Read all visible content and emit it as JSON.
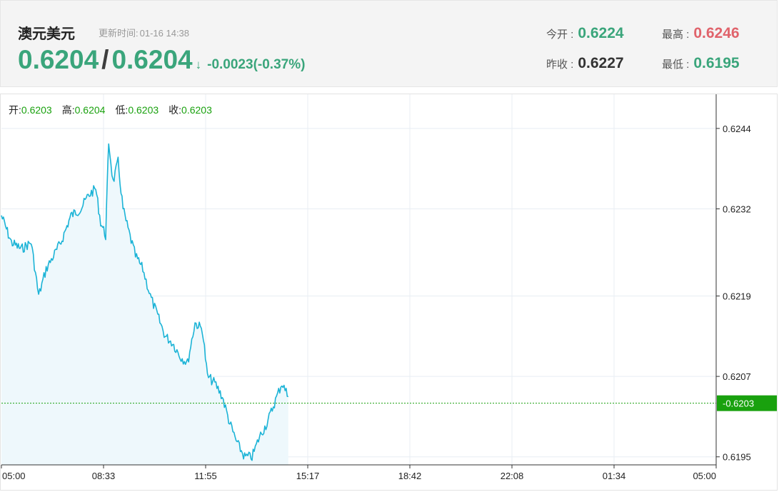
{
  "header": {
    "pair_name": "澳元美元",
    "updated_label": "更新时间:",
    "updated_time": "01-16 14:38",
    "bid": "0.6204",
    "separator": "/",
    "ask": "0.6204",
    "direction_arrow": "↓",
    "change": "-0.0023(-0.37%)",
    "open_label": "今开 :",
    "open_value": "0.6224",
    "high_label": "最高 :",
    "high_value": "0.6246",
    "prev_close_label": "昨收 :",
    "prev_close_value": "0.6227",
    "low_label": "最低 :",
    "low_value": "0.6195"
  },
  "ohlc": {
    "open_label": "开:",
    "open": "0.6203",
    "high_label": "高:",
    "high": "0.6204",
    "low_label": "低:",
    "low": "0.6203",
    "close_label": "收:",
    "close": "0.6203"
  },
  "colors": {
    "up_green": "#3aa57b",
    "high_red": "#e0636b",
    "line": "#1bb3d6",
    "area_fill": "#eef8fc",
    "current_price_green": "#19a10e",
    "grid": "#e8eef3"
  },
  "chart_data": {
    "type": "area",
    "title": "",
    "xlabel": "",
    "ylabel": "",
    "x_ticks": [
      "05:00",
      "08:33",
      "11:55",
      "15:17",
      "18:42",
      "22:08",
      "01:34",
      "05:00"
    ],
    "y_ticks": [
      0.6195,
      0.6207,
      0.6219,
      0.6232,
      0.6244
    ],
    "ylim": [
      0.61938,
      0.62491
    ],
    "current_price": 0.6203,
    "current_price_label": "0.6203",
    "grid": true,
    "series": [
      {
        "x": [
          "05:00",
          "05:20",
          "05:40",
          "06:00",
          "06:15",
          "06:30",
          "06:45",
          "07:00",
          "07:20",
          "07:40",
          "07:55",
          "08:10",
          "08:20",
          "08:30",
          "08:36",
          "08:45",
          "08:55",
          "09:05",
          "09:15",
          "09:30",
          "09:45",
          "10:00",
          "10:15",
          "10:30",
          "10:45",
          "11:00",
          "11:15",
          "11:30",
          "11:45",
          "11:55",
          "12:10",
          "12:25",
          "12:40",
          "12:55",
          "13:10",
          "13:25",
          "13:40",
          "13:55",
          "14:10",
          "14:25",
          "14:38"
        ],
        "values": [
          0.6231,
          0.6227,
          0.6226,
          0.6227,
          0.6219,
          0.6223,
          0.6225,
          0.6227,
          0.6231,
          0.6232,
          0.6234,
          0.6235,
          0.623,
          0.6228,
          0.6242,
          0.6236,
          0.6239,
          0.6232,
          0.6229,
          0.6225,
          0.6223,
          0.6219,
          0.6216,
          0.6213,
          0.6212,
          0.621,
          0.6209,
          0.6215,
          0.6214,
          0.6207,
          0.6206,
          0.6204,
          0.62,
          0.6197,
          0.6195,
          0.6195,
          0.6198,
          0.62,
          0.6203,
          0.6206,
          0.6204
        ]
      }
    ]
  }
}
